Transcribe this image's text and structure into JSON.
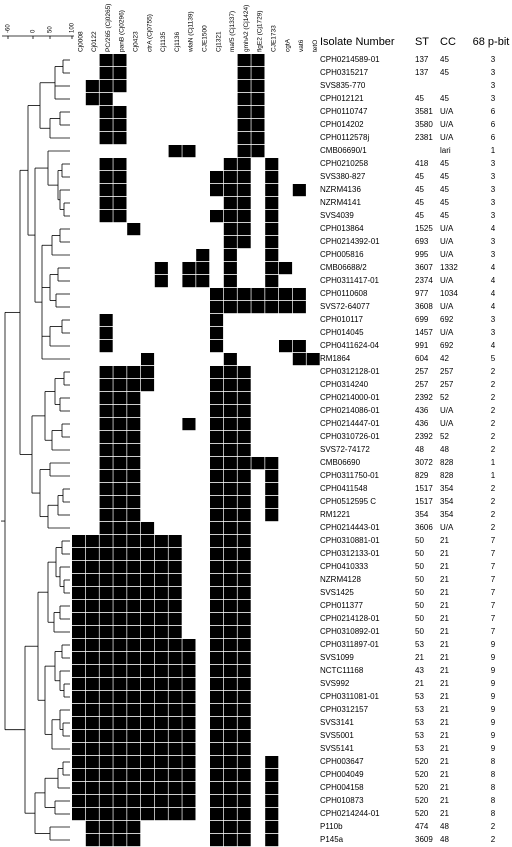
{
  "scale": {
    "labels": [
      -60,
      0,
      50,
      100
    ]
  },
  "genes": [
    "Cj0008",
    "Cj0122",
    "PC/265 (Cj0265)",
    "panB (Cj0296)",
    "Cj0423",
    "ctrA (Cj0755)",
    "Cj1135",
    "Cj1136",
    "wlaN (Cj1139)",
    "CJE1500",
    "Cj1321",
    "maf5 (Cj1337)",
    "gmhA2 (Cj1424)",
    "flgE2 (Cj1729)",
    "CJE1733",
    "cgtA",
    "vat6",
    "tetO"
  ],
  "headers": {
    "isolate": "Isolate Number",
    "st": "ST",
    "cc": "CC",
    "pbit": "68 p-bit"
  },
  "isolates": [
    {
      "name": "CPH0214589-01",
      "st": 137,
      "cc": 45,
      "pbit": 3,
      "genes": [
        0,
        0,
        1,
        1,
        0,
        0,
        0,
        0,
        0,
        0,
        0,
        0,
        1,
        1,
        0,
        0,
        0,
        0
      ]
    },
    {
      "name": "CPH0315217",
      "st": 137,
      "cc": 45,
      "pbit": 3,
      "genes": [
        0,
        0,
        1,
        1,
        0,
        0,
        0,
        0,
        0,
        0,
        0,
        0,
        1,
        1,
        0,
        0,
        0,
        0
      ]
    },
    {
      "name": "SVS835-770",
      "st": null,
      "cc": null,
      "pbit": 3,
      "genes": [
        0,
        1,
        1,
        1,
        0,
        0,
        0,
        0,
        0,
        0,
        0,
        0,
        1,
        1,
        0,
        0,
        0,
        0
      ]
    },
    {
      "name": "CPH012121",
      "st": 45,
      "cc": 45,
      "pbit": 3,
      "genes": [
        0,
        1,
        1,
        0,
        0,
        0,
        0,
        0,
        0,
        0,
        0,
        0,
        1,
        1,
        0,
        0,
        0,
        0
      ]
    },
    {
      "name": "CPH0110747",
      "st": 3581,
      "cc": "U/A",
      "pbit": 6,
      "genes": [
        0,
        0,
        1,
        1,
        0,
        0,
        0,
        0,
        0,
        0,
        0,
        0,
        1,
        1,
        0,
        0,
        0,
        0
      ]
    },
    {
      "name": "CPH014202",
      "st": 3580,
      "cc": "U/A",
      "pbit": 6,
      "genes": [
        0,
        0,
        1,
        1,
        0,
        0,
        0,
        0,
        0,
        0,
        0,
        0,
        1,
        1,
        0,
        0,
        0,
        0
      ]
    },
    {
      "name": "CPH0112578j",
      "st": 2381,
      "cc": "U/A",
      "pbit": 6,
      "genes": [
        0,
        0,
        1,
        1,
        0,
        0,
        0,
        0,
        0,
        0,
        0,
        0,
        1,
        1,
        0,
        0,
        0,
        0
      ]
    },
    {
      "name": "CMB06690/1",
      "st": null,
      "cc": "lari",
      "pbit": 1,
      "genes": [
        0,
        0,
        0,
        0,
        0,
        0,
        0,
        1,
        1,
        0,
        0,
        0,
        1,
        1,
        0,
        0,
        0,
        0
      ]
    },
    {
      "name": "CPH0210258",
      "st": 418,
      "cc": 45,
      "pbit": 3,
      "genes": [
        0,
        0,
        1,
        1,
        0,
        0,
        0,
        0,
        0,
        0,
        0,
        1,
        1,
        0,
        1,
        0,
        0,
        0
      ]
    },
    {
      "name": "SVS380-827",
      "st": 45,
      "cc": 45,
      "pbit": 3,
      "genes": [
        0,
        0,
        1,
        1,
        0,
        0,
        0,
        0,
        0,
        0,
        1,
        1,
        1,
        0,
        1,
        0,
        0,
        0
      ]
    },
    {
      "name": "NZRM4136",
      "st": 45,
      "cc": 45,
      "pbit": 3,
      "genes": [
        0,
        0,
        1,
        1,
        0,
        0,
        0,
        0,
        0,
        0,
        1,
        1,
        1,
        0,
        1,
        0,
        1,
        0
      ]
    },
    {
      "name": "NZRM4141",
      "st": 45,
      "cc": 45,
      "pbit": 3,
      "genes": [
        0,
        0,
        1,
        1,
        0,
        0,
        0,
        0,
        0,
        0,
        0,
        1,
        1,
        0,
        1,
        0,
        0,
        0
      ]
    },
    {
      "name": "SVS4039",
      "st": 45,
      "cc": 45,
      "pbit": 3,
      "genes": [
        0,
        0,
        1,
        1,
        0,
        0,
        0,
        0,
        0,
        0,
        1,
        1,
        1,
        0,
        1,
        0,
        0,
        0
      ]
    },
    {
      "name": "CPH013864",
      "st": 1525,
      "cc": "U/A",
      "pbit": 4,
      "genes": [
        0,
        0,
        0,
        0,
        1,
        0,
        0,
        0,
        0,
        0,
        0,
        1,
        1,
        0,
        1,
        0,
        0,
        0
      ]
    },
    {
      "name": "CPH0214392-01",
      "st": 693,
      "cc": "U/A",
      "pbit": 3,
      "genes": [
        0,
        0,
        0,
        0,
        0,
        0,
        0,
        0,
        0,
        0,
        0,
        1,
        1,
        0,
        1,
        0,
        0,
        0
      ]
    },
    {
      "name": "CPH005816",
      "st": 995,
      "cc": "U/A",
      "pbit": 3,
      "genes": [
        0,
        0,
        0,
        0,
        0,
        0,
        0,
        0,
        0,
        1,
        0,
        1,
        0,
        0,
        1,
        0,
        0,
        0
      ]
    },
    {
      "name": "CMB06688/2",
      "st": 3607,
      "cc": 1332,
      "pbit": 4,
      "genes": [
        0,
        0,
        0,
        0,
        0,
        0,
        1,
        0,
        1,
        1,
        0,
        1,
        0,
        0,
        1,
        1,
        0,
        0
      ]
    },
    {
      "name": "CPH0311417-01",
      "st": 2374,
      "cc": "U/A",
      "pbit": 4,
      "genes": [
        0,
        0,
        0,
        0,
        0,
        0,
        1,
        0,
        1,
        1,
        0,
        1,
        0,
        0,
        1,
        0,
        0,
        0
      ]
    },
    {
      "name": "CPH0110608",
      "st": 977,
      "cc": 1034,
      "pbit": 4,
      "genes": [
        0,
        0,
        0,
        0,
        0,
        0,
        0,
        0,
        0,
        0,
        1,
        1,
        1,
        1,
        1,
        1,
        1,
        0
      ]
    },
    {
      "name": "SVS72-64077",
      "st": 3608,
      "cc": "U/A",
      "pbit": 4,
      "genes": [
        0,
        0,
        0,
        0,
        0,
        0,
        0,
        0,
        0,
        0,
        1,
        1,
        1,
        1,
        1,
        1,
        1,
        0
      ]
    },
    {
      "name": "CPH010117",
      "st": 699,
      "cc": 692,
      "pbit": 3,
      "genes": [
        0,
        0,
        1,
        0,
        0,
        0,
        0,
        0,
        0,
        0,
        1,
        0,
        0,
        0,
        0,
        0,
        0,
        0
      ]
    },
    {
      "name": "CPH014045",
      "st": 1457,
      "cc": "U/A",
      "pbit": 3,
      "genes": [
        0,
        0,
        1,
        0,
        0,
        0,
        0,
        0,
        0,
        0,
        1,
        0,
        0,
        0,
        0,
        0,
        0,
        0
      ]
    },
    {
      "name": "CPH0411624-04",
      "st": 991,
      "cc": 692,
      "pbit": 4,
      "genes": [
        0,
        0,
        1,
        0,
        0,
        0,
        0,
        0,
        0,
        0,
        1,
        0,
        0,
        0,
        0,
        1,
        1,
        0
      ]
    },
    {
      "name": "RM1864",
      "st": 604,
      "cc": 42,
      "pbit": 5,
      "genes": [
        0,
        0,
        0,
        0,
        0,
        1,
        0,
        0,
        0,
        0,
        0,
        1,
        0,
        0,
        0,
        0,
        1,
        1
      ]
    },
    {
      "name": "CPH0312128-01",
      "st": 257,
      "cc": 257,
      "pbit": 2,
      "genes": [
        0,
        0,
        1,
        1,
        1,
        1,
        0,
        0,
        0,
        0,
        1,
        1,
        1,
        0,
        0,
        0,
        0,
        0
      ]
    },
    {
      "name": "CPH0314240",
      "st": 257,
      "cc": 257,
      "pbit": 2,
      "genes": [
        0,
        0,
        1,
        1,
        1,
        1,
        0,
        0,
        0,
        0,
        1,
        1,
        1,
        0,
        0,
        0,
        0,
        0
      ]
    },
    {
      "name": "CPH0214000-01",
      "st": 2392,
      "cc": 52,
      "pbit": 2,
      "genes": [
        0,
        0,
        1,
        1,
        1,
        0,
        0,
        0,
        0,
        0,
        1,
        1,
        1,
        0,
        0,
        0,
        0,
        0
      ]
    },
    {
      "name": "CPH0214086-01",
      "st": 436,
      "cc": "U/A",
      "pbit": 2,
      "genes": [
        0,
        0,
        1,
        1,
        1,
        0,
        0,
        0,
        0,
        0,
        1,
        1,
        1,
        0,
        0,
        0,
        0,
        0
      ]
    },
    {
      "name": "CPH0214447-01",
      "st": 436,
      "cc": "U/A",
      "pbit": 2,
      "genes": [
        0,
        0,
        1,
        1,
        1,
        0,
        0,
        0,
        1,
        0,
        1,
        1,
        1,
        0,
        0,
        0,
        0,
        0
      ]
    },
    {
      "name": "CPH0310726-01",
      "st": 2392,
      "cc": 52,
      "pbit": 2,
      "genes": [
        0,
        0,
        1,
        1,
        1,
        0,
        0,
        0,
        0,
        0,
        1,
        1,
        1,
        0,
        0,
        0,
        0,
        0
      ]
    },
    {
      "name": "SVS72-74172",
      "st": 48,
      "cc": 48,
      "pbit": 2,
      "genes": [
        0,
        0,
        1,
        1,
        1,
        0,
        0,
        0,
        0,
        0,
        1,
        1,
        1,
        0,
        0,
        0,
        0,
        0
      ]
    },
    {
      "name": "CMB06690",
      "st": 3072,
      "cc": 828,
      "pbit": 1,
      "genes": [
        0,
        0,
        1,
        1,
        1,
        0,
        0,
        0,
        0,
        0,
        1,
        1,
        1,
        1,
        1,
        0,
        0,
        0
      ]
    },
    {
      "name": "CPH0311750-01",
      "st": 829,
      "cc": 828,
      "pbit": 1,
      "genes": [
        0,
        0,
        1,
        1,
        1,
        0,
        0,
        0,
        0,
        0,
        1,
        1,
        1,
        0,
        1,
        0,
        0,
        0
      ]
    },
    {
      "name": "CPH0411548",
      "st": 1517,
      "cc": 354,
      "pbit": 2,
      "genes": [
        0,
        0,
        1,
        1,
        1,
        0,
        0,
        0,
        0,
        0,
        1,
        1,
        1,
        0,
        1,
        0,
        0,
        0
      ]
    },
    {
      "name": "CPH0512595 C",
      "st": 1517,
      "cc": 354,
      "pbit": 2,
      "genes": [
        0,
        0,
        1,
        1,
        1,
        0,
        0,
        0,
        0,
        0,
        1,
        1,
        1,
        0,
        1,
        0,
        0,
        0
      ]
    },
    {
      "name": "RM1221",
      "st": 354,
      "cc": 354,
      "pbit": 2,
      "genes": [
        0,
        0,
        1,
        1,
        1,
        0,
        0,
        0,
        0,
        0,
        1,
        1,
        1,
        0,
        1,
        0,
        0,
        0
      ]
    },
    {
      "name": "CPH0214443-01",
      "st": 3606,
      "cc": "U/A",
      "pbit": 2,
      "genes": [
        0,
        0,
        1,
        1,
        1,
        1,
        0,
        0,
        0,
        0,
        1,
        1,
        1,
        0,
        0,
        0,
        0,
        0
      ]
    },
    {
      "name": "CPH0310881-01",
      "st": 50,
      "cc": 21,
      "pbit": 7,
      "genes": [
        1,
        1,
        1,
        1,
        1,
        1,
        1,
        1,
        0,
        0,
        1,
        1,
        1,
        0,
        0,
        0,
        0,
        0
      ]
    },
    {
      "name": "CPH0312133-01",
      "st": 50,
      "cc": 21,
      "pbit": 7,
      "genes": [
        1,
        1,
        1,
        1,
        1,
        1,
        1,
        1,
        0,
        0,
        1,
        1,
        1,
        0,
        0,
        0,
        0,
        0
      ]
    },
    {
      "name": "CPH0410333",
      "st": 50,
      "cc": 21,
      "pbit": 7,
      "genes": [
        1,
        1,
        1,
        1,
        1,
        1,
        1,
        1,
        0,
        0,
        1,
        1,
        1,
        0,
        0,
        0,
        0,
        0
      ]
    },
    {
      "name": "NZRM4128",
      "st": 50,
      "cc": 21,
      "pbit": 7,
      "genes": [
        1,
        1,
        1,
        1,
        1,
        1,
        1,
        1,
        0,
        0,
        1,
        1,
        1,
        0,
        0,
        0,
        0,
        0
      ]
    },
    {
      "name": "SVS1425",
      "st": 50,
      "cc": 21,
      "pbit": 7,
      "genes": [
        1,
        1,
        1,
        1,
        1,
        1,
        1,
        1,
        0,
        0,
        1,
        1,
        1,
        0,
        0,
        0,
        0,
        0
      ]
    },
    {
      "name": "CPH011377",
      "st": 50,
      "cc": 21,
      "pbit": 7,
      "genes": [
        1,
        1,
        1,
        1,
        1,
        1,
        1,
        1,
        0,
        0,
        1,
        1,
        1,
        0,
        0,
        0,
        0,
        0
      ]
    },
    {
      "name": "CPH0214128-01",
      "st": 50,
      "cc": 21,
      "pbit": 7,
      "genes": [
        1,
        1,
        1,
        1,
        1,
        1,
        1,
        1,
        0,
        0,
        1,
        1,
        1,
        0,
        0,
        0,
        0,
        0
      ]
    },
    {
      "name": "CPH0310892-01",
      "st": 50,
      "cc": 21,
      "pbit": 7,
      "genes": [
        1,
        1,
        1,
        1,
        1,
        1,
        1,
        1,
        0,
        0,
        1,
        1,
        1,
        0,
        0,
        0,
        0,
        0
      ]
    },
    {
      "name": "CPH0311897-01",
      "st": 53,
      "cc": 21,
      "pbit": 9,
      "genes": [
        1,
        1,
        1,
        1,
        1,
        1,
        1,
        1,
        1,
        0,
        1,
        1,
        1,
        0,
        0,
        0,
        0,
        0
      ]
    },
    {
      "name": "SVS1099",
      "st": 21,
      "cc": 21,
      "pbit": 9,
      "genes": [
        1,
        1,
        1,
        1,
        1,
        1,
        1,
        1,
        1,
        0,
        1,
        1,
        1,
        0,
        0,
        0,
        0,
        0
      ]
    },
    {
      "name": "NCTC11168",
      "st": 43,
      "cc": 21,
      "pbit": 9,
      "genes": [
        1,
        1,
        1,
        1,
        1,
        1,
        1,
        1,
        1,
        0,
        1,
        1,
        1,
        0,
        0,
        0,
        0,
        0
      ]
    },
    {
      "name": "SVS992",
      "st": 21,
      "cc": 21,
      "pbit": 9,
      "genes": [
        1,
        1,
        1,
        1,
        1,
        1,
        1,
        1,
        1,
        0,
        1,
        1,
        1,
        0,
        0,
        0,
        0,
        0
      ]
    },
    {
      "name": "CPH0311081-01",
      "st": 53,
      "cc": 21,
      "pbit": 9,
      "genes": [
        1,
        1,
        1,
        1,
        1,
        1,
        1,
        1,
        1,
        0,
        1,
        1,
        1,
        0,
        0,
        0,
        0,
        0
      ]
    },
    {
      "name": "CPH0312157",
      "st": 53,
      "cc": 21,
      "pbit": 9,
      "genes": [
        1,
        1,
        1,
        1,
        1,
        1,
        1,
        1,
        1,
        0,
        1,
        1,
        1,
        0,
        0,
        0,
        0,
        0
      ]
    },
    {
      "name": "SVS3141",
      "st": 53,
      "cc": 21,
      "pbit": 9,
      "genes": [
        1,
        1,
        1,
        1,
        1,
        1,
        1,
        1,
        1,
        0,
        1,
        1,
        1,
        0,
        0,
        0,
        0,
        0
      ]
    },
    {
      "name": "SVS5001",
      "st": 53,
      "cc": 21,
      "pbit": 9,
      "genes": [
        1,
        1,
        1,
        1,
        1,
        1,
        1,
        1,
        1,
        0,
        1,
        1,
        1,
        0,
        0,
        0,
        0,
        0
      ]
    },
    {
      "name": "SVS5141",
      "st": 53,
      "cc": 21,
      "pbit": 9,
      "genes": [
        1,
        1,
        1,
        1,
        1,
        1,
        1,
        1,
        1,
        0,
        1,
        1,
        1,
        0,
        0,
        0,
        0,
        0
      ]
    },
    {
      "name": "CPH003647",
      "st": 520,
      "cc": 21,
      "pbit": 8,
      "genes": [
        1,
        1,
        1,
        1,
        1,
        1,
        1,
        1,
        1,
        0,
        1,
        1,
        1,
        0,
        1,
        0,
        0,
        0
      ]
    },
    {
      "name": "CPH004049",
      "st": 520,
      "cc": 21,
      "pbit": 8,
      "genes": [
        1,
        1,
        1,
        1,
        1,
        1,
        1,
        1,
        1,
        0,
        1,
        1,
        1,
        0,
        1,
        0,
        0,
        0
      ]
    },
    {
      "name": "CPH004158",
      "st": 520,
      "cc": 21,
      "pbit": 8,
      "genes": [
        1,
        1,
        1,
        1,
        1,
        1,
        1,
        1,
        1,
        0,
        1,
        1,
        1,
        0,
        1,
        0,
        0,
        0
      ]
    },
    {
      "name": "CPH010873",
      "st": 520,
      "cc": 21,
      "pbit": 8,
      "genes": [
        1,
        1,
        1,
        1,
        1,
        1,
        1,
        1,
        1,
        0,
        1,
        1,
        1,
        0,
        1,
        0,
        0,
        0
      ]
    },
    {
      "name": "CPH0214244-01",
      "st": 520,
      "cc": 21,
      "pbit": 8,
      "genes": [
        1,
        1,
        1,
        1,
        1,
        1,
        1,
        1,
        1,
        0,
        1,
        1,
        1,
        0,
        1,
        0,
        0,
        0
      ]
    },
    {
      "name": "P110b",
      "st": 474,
      "cc": 48,
      "pbit": 2,
      "genes": [
        0,
        1,
        1,
        1,
        1,
        0,
        0,
        0,
        0,
        0,
        1,
        1,
        1,
        0,
        1,
        0,
        0,
        0
      ]
    },
    {
      "name": "P145a",
      "st": 3609,
      "cc": 48,
      "pbit": 2,
      "genes": [
        0,
        1,
        1,
        1,
        1,
        0,
        0,
        0,
        0,
        0,
        1,
        1,
        1,
        0,
        1,
        0,
        0,
        0
      ]
    }
  ]
}
